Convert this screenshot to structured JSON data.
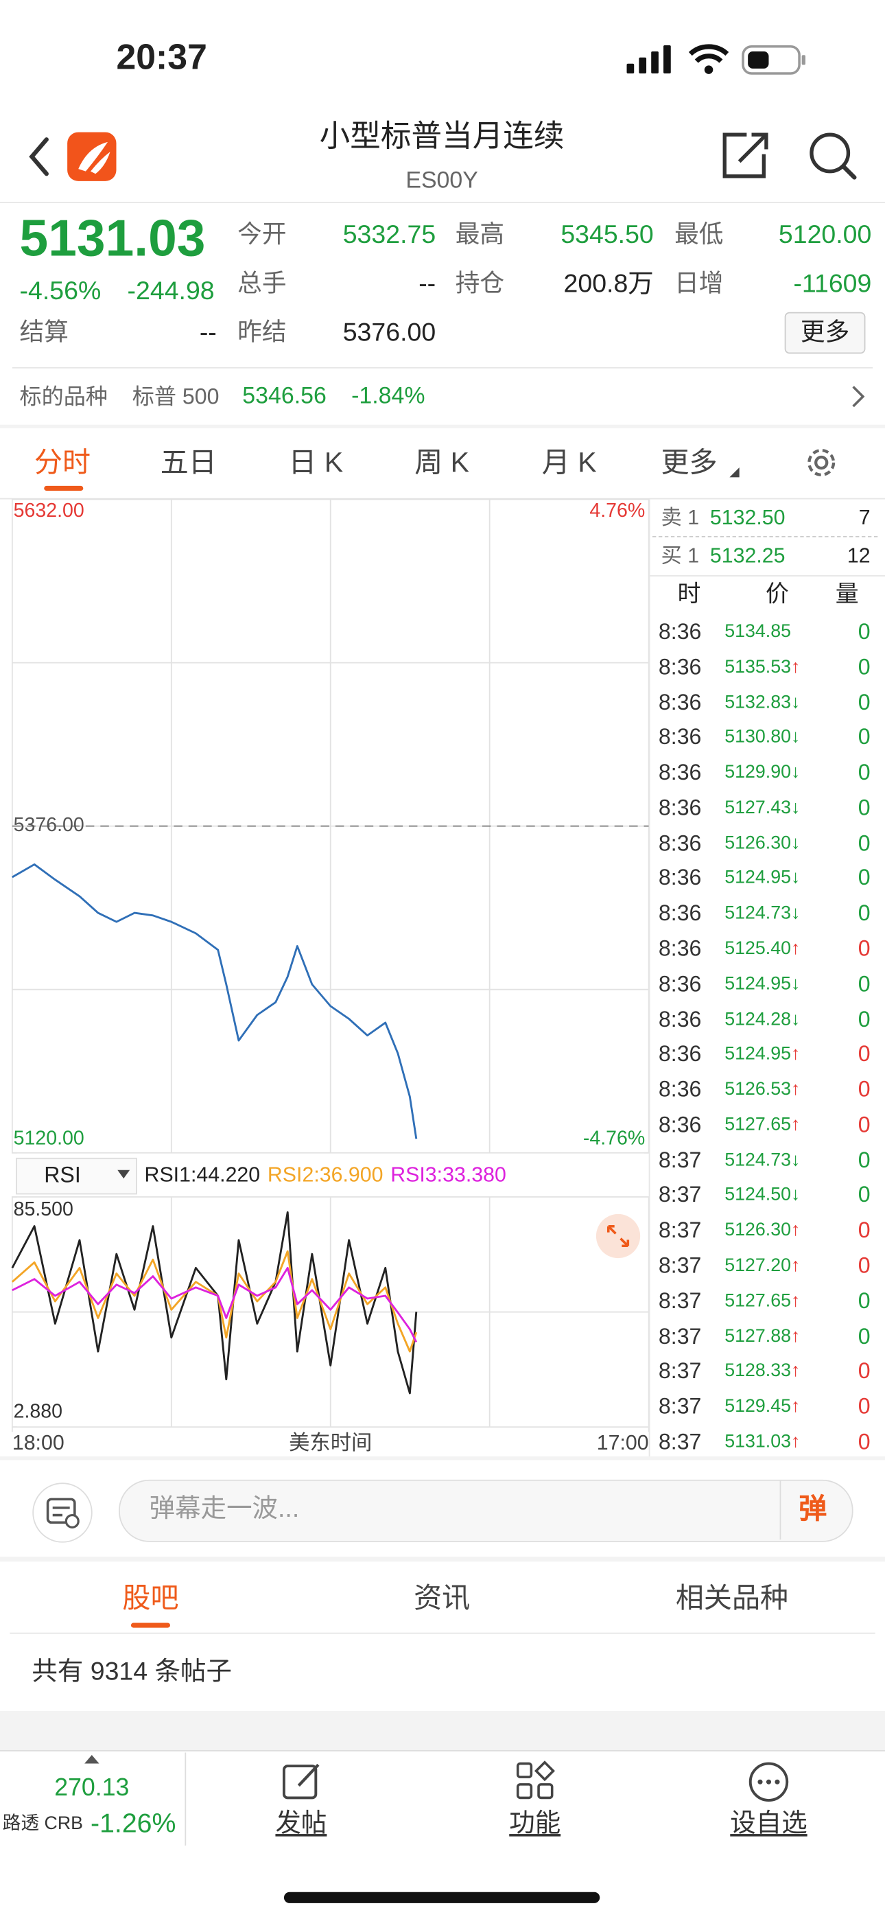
{
  "status_bar": {
    "time": "20:37"
  },
  "header": {
    "title": "小型标普当月连续",
    "code": "ES00Y"
  },
  "quote": {
    "price": "5131.03",
    "change_pct": "-4.56%",
    "change": "-244.98",
    "fields": [
      {
        "label": "今开",
        "value": "5332.75"
      },
      {
        "label": "最高",
        "value": "5345.50"
      },
      {
        "label": "最低",
        "value": "5120.00"
      },
      {
        "label": "总手",
        "value": "--"
      },
      {
        "label": "持仓",
        "value": "200.8万"
      },
      {
        "label": "日增",
        "value": "-11609"
      },
      {
        "label": "结算",
        "value": "--"
      },
      {
        "label": "昨结",
        "value": "5376.00"
      }
    ],
    "more": "更多"
  },
  "underlying": {
    "label": "标的品种",
    "name": "标普 500",
    "price": "5346.56",
    "change": "-1.84%"
  },
  "tabs": [
    "分时",
    "五日",
    "日 K",
    "周 K",
    "月 K",
    "更多"
  ],
  "chart_data": [
    {
      "type": "line",
      "color": "#2f6fb7",
      "x": [
        0,
        48,
        93,
        146,
        186,
        226,
        265,
        305,
        345,
        398,
        446,
        464,
        491,
        531,
        571,
        597,
        618,
        650,
        690,
        730,
        770,
        809,
        836,
        862,
        876
      ],
      "values": [
        5336,
        5346,
        5334,
        5321,
        5308,
        5301,
        5308,
        5306,
        5301,
        5292,
        5279,
        5252,
        5208,
        5228,
        5238,
        5258,
        5282,
        5252,
        5235,
        5225,
        5212,
        5222,
        5198,
        5164,
        5131.03
      ],
      "xlim": [
        0,
        1380
      ],
      "xticks": [
        {
          "value": 0,
          "label": "18:00"
        },
        {
          "value": 1380,
          "label": "17:00"
        }
      ],
      "xlabel": "美东时间",
      "ylim": [
        5120,
        5632
      ],
      "yticks": [
        {
          "value": 5632,
          "label": "5632.00"
        },
        {
          "value": 5120,
          "label": "5120.00"
        }
      ],
      "reference_line": {
        "value": 5376,
        "label": "5376.00"
      },
      "y2lim": [
        -4.76,
        4.76
      ],
      "y2ticks": [
        {
          "value": 4.76,
          "label": "4.76%"
        },
        {
          "value": -4.76,
          "label": "-4.76%"
        }
      ]
    },
    {
      "type": "line",
      "selector": "RSI",
      "x": [
        0,
        48,
        93,
        146,
        186,
        226,
        265,
        305,
        345,
        398,
        446,
        464,
        491,
        531,
        571,
        597,
        618,
        650,
        690,
        730,
        770,
        809,
        836,
        862,
        876
      ],
      "xlim": [
        0,
        1380
      ],
      "ylim": [
        2.88,
        85.5
      ],
      "yticks": [
        {
          "value": 85.5,
          "label": "85.500"
        },
        {
          "value": 2.88,
          "label": "2.880"
        }
      ],
      "series": [
        {
          "name": "RSI1:44.220",
          "color": "#222222",
          "values": [
            60,
            75,
            40,
            70,
            30,
            65,
            45,
            75,
            35,
            60,
            50,
            20,
            70,
            40,
            55,
            80,
            30,
            65,
            25,
            70,
            40,
            60,
            30,
            15,
            44.22
          ]
        },
        {
          "name": "RSI2:36.900",
          "color": "#f3a526",
          "values": [
            55,
            62,
            48,
            60,
            42,
            58,
            50,
            63,
            45,
            55,
            50,
            35,
            58,
            48,
            55,
            66,
            42,
            56,
            38,
            58,
            47,
            53,
            40,
            30,
            36.9
          ]
        },
        {
          "name": "RSI3:33.380",
          "color": "#dd22dd",
          "values": [
            52,
            56,
            50,
            55,
            47,
            54,
            51,
            57,
            49,
            53,
            50,
            42,
            54,
            50,
            53,
            60,
            47,
            52,
            45,
            53,
            49,
            50,
            44,
            38,
            33.38
          ]
        }
      ]
    }
  ],
  "order_book": {
    "sell": {
      "label": "卖 1",
      "price": "5132.50",
      "volume": "7"
    },
    "buy": {
      "label": "买 1",
      "price": "5132.25",
      "volume": "12"
    }
  },
  "trades": {
    "columns": [
      "时",
      "价",
      "量"
    ],
    "rows": [
      {
        "time": "8:36",
        "price": "5134.85",
        "volume": "0",
        "volume_color": "#1e9e3e"
      },
      {
        "time": "8:36",
        "price": "5135.53",
        "arrow": "↑",
        "arrow_color": "#e53935",
        "volume": "0",
        "volume_color": "#1e9e3e"
      },
      {
        "time": "8:36",
        "price": "5132.83",
        "arrow": "↓",
        "arrow_color": "#1e9e3e",
        "volume": "0",
        "volume_color": "#1e9e3e"
      },
      {
        "time": "8:36",
        "price": "5130.80",
        "arrow": "↓",
        "arrow_color": "#1e9e3e",
        "volume": "0",
        "volume_color": "#1e9e3e"
      },
      {
        "time": "8:36",
        "price": "5129.90",
        "arrow": "↓",
        "arrow_color": "#1e9e3e",
        "volume": "0",
        "volume_color": "#1e9e3e"
      },
      {
        "time": "8:36",
        "price": "5127.43",
        "arrow": "↓",
        "arrow_color": "#1e9e3e",
        "volume": "0",
        "volume_color": "#1e9e3e"
      },
      {
        "time": "8:36",
        "price": "5126.30",
        "arrow": "↓",
        "arrow_color": "#1e9e3e",
        "volume": "0",
        "volume_color": "#1e9e3e"
      },
      {
        "time": "8:36",
        "price": "5124.95",
        "arrow": "↓",
        "arrow_color": "#1e9e3e",
        "volume": "0",
        "volume_color": "#1e9e3e"
      },
      {
        "time": "8:36",
        "price": "5124.73",
        "arrow": "↓",
        "arrow_color": "#1e9e3e",
        "volume": "0",
        "volume_color": "#1e9e3e"
      },
      {
        "time": "8:36",
        "price": "5125.40",
        "arrow": "↑",
        "arrow_color": "#e53935",
        "volume": "0",
        "volume_color": "#e53935"
      },
      {
        "time": "8:36",
        "price": "5124.95",
        "arrow": "↓",
        "arrow_color": "#1e9e3e",
        "volume": "0",
        "volume_color": "#1e9e3e"
      },
      {
        "time": "8:36",
        "price": "5124.28",
        "arrow": "↓",
        "arrow_color": "#1e9e3e",
        "volume": "0",
        "volume_color": "#1e9e3e"
      },
      {
        "time": "8:36",
        "price": "5124.95",
        "arrow": "↑",
        "arrow_color": "#e53935",
        "volume": "0",
        "volume_color": "#e53935"
      },
      {
        "time": "8:36",
        "price": "5126.53",
        "arrow": "↑",
        "arrow_color": "#e53935",
        "volume": "0",
        "volume_color": "#e53935"
      },
      {
        "time": "8:36",
        "price": "5127.65",
        "arrow": "↑",
        "arrow_color": "#e53935",
        "volume": "0",
        "volume_color": "#e53935"
      },
      {
        "time": "8:37",
        "price": "5124.73",
        "arrow": "↓",
        "arrow_color": "#1e9e3e",
        "volume": "0",
        "volume_color": "#1e9e3e"
      },
      {
        "time": "8:37",
        "price": "5124.50",
        "arrow": "↓",
        "arrow_color": "#1e9e3e",
        "volume": "0",
        "volume_color": "#1e9e3e"
      },
      {
        "time": "8:37",
        "price": "5126.30",
        "arrow": "↑",
        "arrow_color": "#e53935",
        "volume": "0",
        "volume_color": "#e53935"
      },
      {
        "time": "8:37",
        "price": "5127.20",
        "arrow": "↑",
        "arrow_color": "#e53935",
        "volume": "0",
        "volume_color": "#e53935"
      },
      {
        "time": "8:37",
        "price": "5127.65",
        "arrow": "↑",
        "arrow_color": "#e53935",
        "volume": "0",
        "volume_color": "#1e9e3e"
      },
      {
        "time": "8:37",
        "price": "5127.88",
        "arrow": "↑",
        "arrow_color": "#e53935",
        "volume": "0",
        "volume_color": "#1e9e3e"
      },
      {
        "time": "8:37",
        "price": "5128.33",
        "arrow": "↑",
        "arrow_color": "#e53935",
        "volume": "0",
        "volume_color": "#e53935"
      },
      {
        "time": "8:37",
        "price": "5129.45",
        "arrow": "↑",
        "arrow_color": "#e53935",
        "volume": "0",
        "volume_color": "#e53935"
      },
      {
        "time": "8:37",
        "price": "5131.03",
        "arrow": "↑",
        "arrow_color": "#e53935",
        "volume": "0",
        "volume_color": "#e53935"
      }
    ]
  },
  "comment_bar": {
    "placeholder": "弹幕走一波...",
    "button": "弹"
  },
  "community_tabs": [
    "股吧",
    "资讯",
    "相关品种"
  ],
  "post_count": "共有 9314 条帖子",
  "bottom_bar": {
    "index_value": "270.13",
    "index_name": "路透 CRB",
    "index_change": "-1.26%",
    "buttons": [
      "发帖",
      "功能",
      "设自选"
    ]
  }
}
